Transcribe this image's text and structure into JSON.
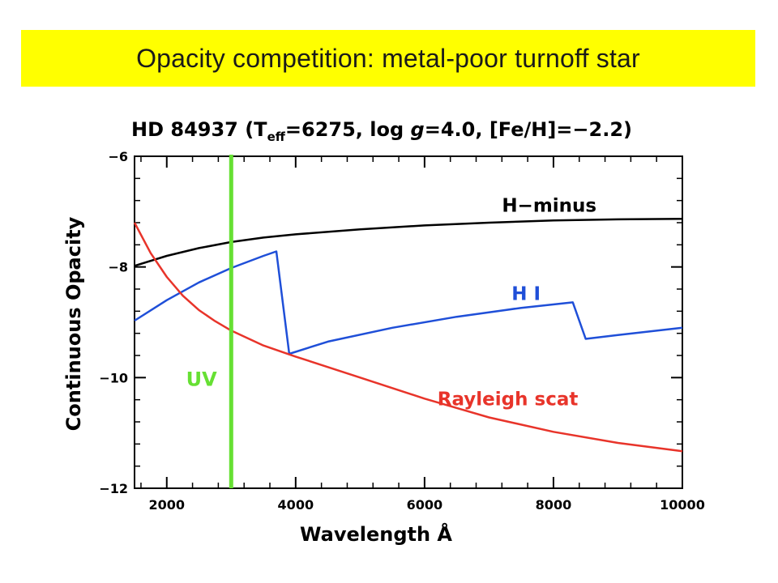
{
  "slide": {
    "title": "Opacity competition: metal-poor turnoff star"
  },
  "chart_data": {
    "type": "line",
    "title_prefix": "HD 84937  (T",
    "title_sub": "eff",
    "title_middle": "=6275, log ",
    "title_g": "g",
    "title_suffix": "=4.0, [Fe/H]=−2.2)",
    "xlabel": "Wavelength Å",
    "ylabel": "Continuous Opacity",
    "xlim": [
      1500,
      10000
    ],
    "ylim": [
      -12,
      -6
    ],
    "x_ticks": [
      2000,
      4000,
      6000,
      8000,
      10000
    ],
    "x_tick_labels": [
      "2000",
      "4000",
      "6000",
      "8000",
      "10000"
    ],
    "y_ticks": [
      -12,
      -10,
      -8,
      -6
    ],
    "y_tick_labels": [
      "−12",
      "−10",
      "−8",
      "−6"
    ],
    "series": [
      {
        "name": "H−minus",
        "color": "#000000",
        "x": [
          1500,
          2000,
          2500,
          3000,
          3500,
          4000,
          5000,
          6000,
          7000,
          8000,
          9000,
          10000
        ],
        "y": [
          -7.98,
          -7.8,
          -7.66,
          -7.55,
          -7.47,
          -7.41,
          -7.32,
          -7.25,
          -7.2,
          -7.16,
          -7.14,
          -7.13
        ]
      },
      {
        "name": "H I",
        "color": "#1f4fd8",
        "x": [
          1500,
          2000,
          2500,
          3000,
          3500,
          3700,
          3900,
          4500,
          5500,
          6500,
          7500,
          8300,
          8500,
          9000,
          10000
        ],
        "y": [
          -8.97,
          -8.6,
          -8.28,
          -8.02,
          -7.8,
          -7.72,
          -9.57,
          -9.35,
          -9.1,
          -8.9,
          -8.74,
          -8.64,
          -9.3,
          -9.23,
          -9.1
        ]
      },
      {
        "name": "Rayleigh scat",
        "color": "#e8342a",
        "x": [
          1500,
          1750,
          2000,
          2250,
          2500,
          2750,
          3000,
          3500,
          4000,
          5000,
          6000,
          7000,
          8000,
          9000,
          10000
        ],
        "y": [
          -7.2,
          -7.75,
          -8.18,
          -8.52,
          -8.78,
          -8.98,
          -9.15,
          -9.42,
          -9.62,
          -10.0,
          -10.38,
          -10.72,
          -10.98,
          -11.18,
          -11.33
        ]
      }
    ],
    "marker": {
      "label": "UV",
      "x": 3000,
      "color": "#66e033"
    },
    "grid": false
  }
}
